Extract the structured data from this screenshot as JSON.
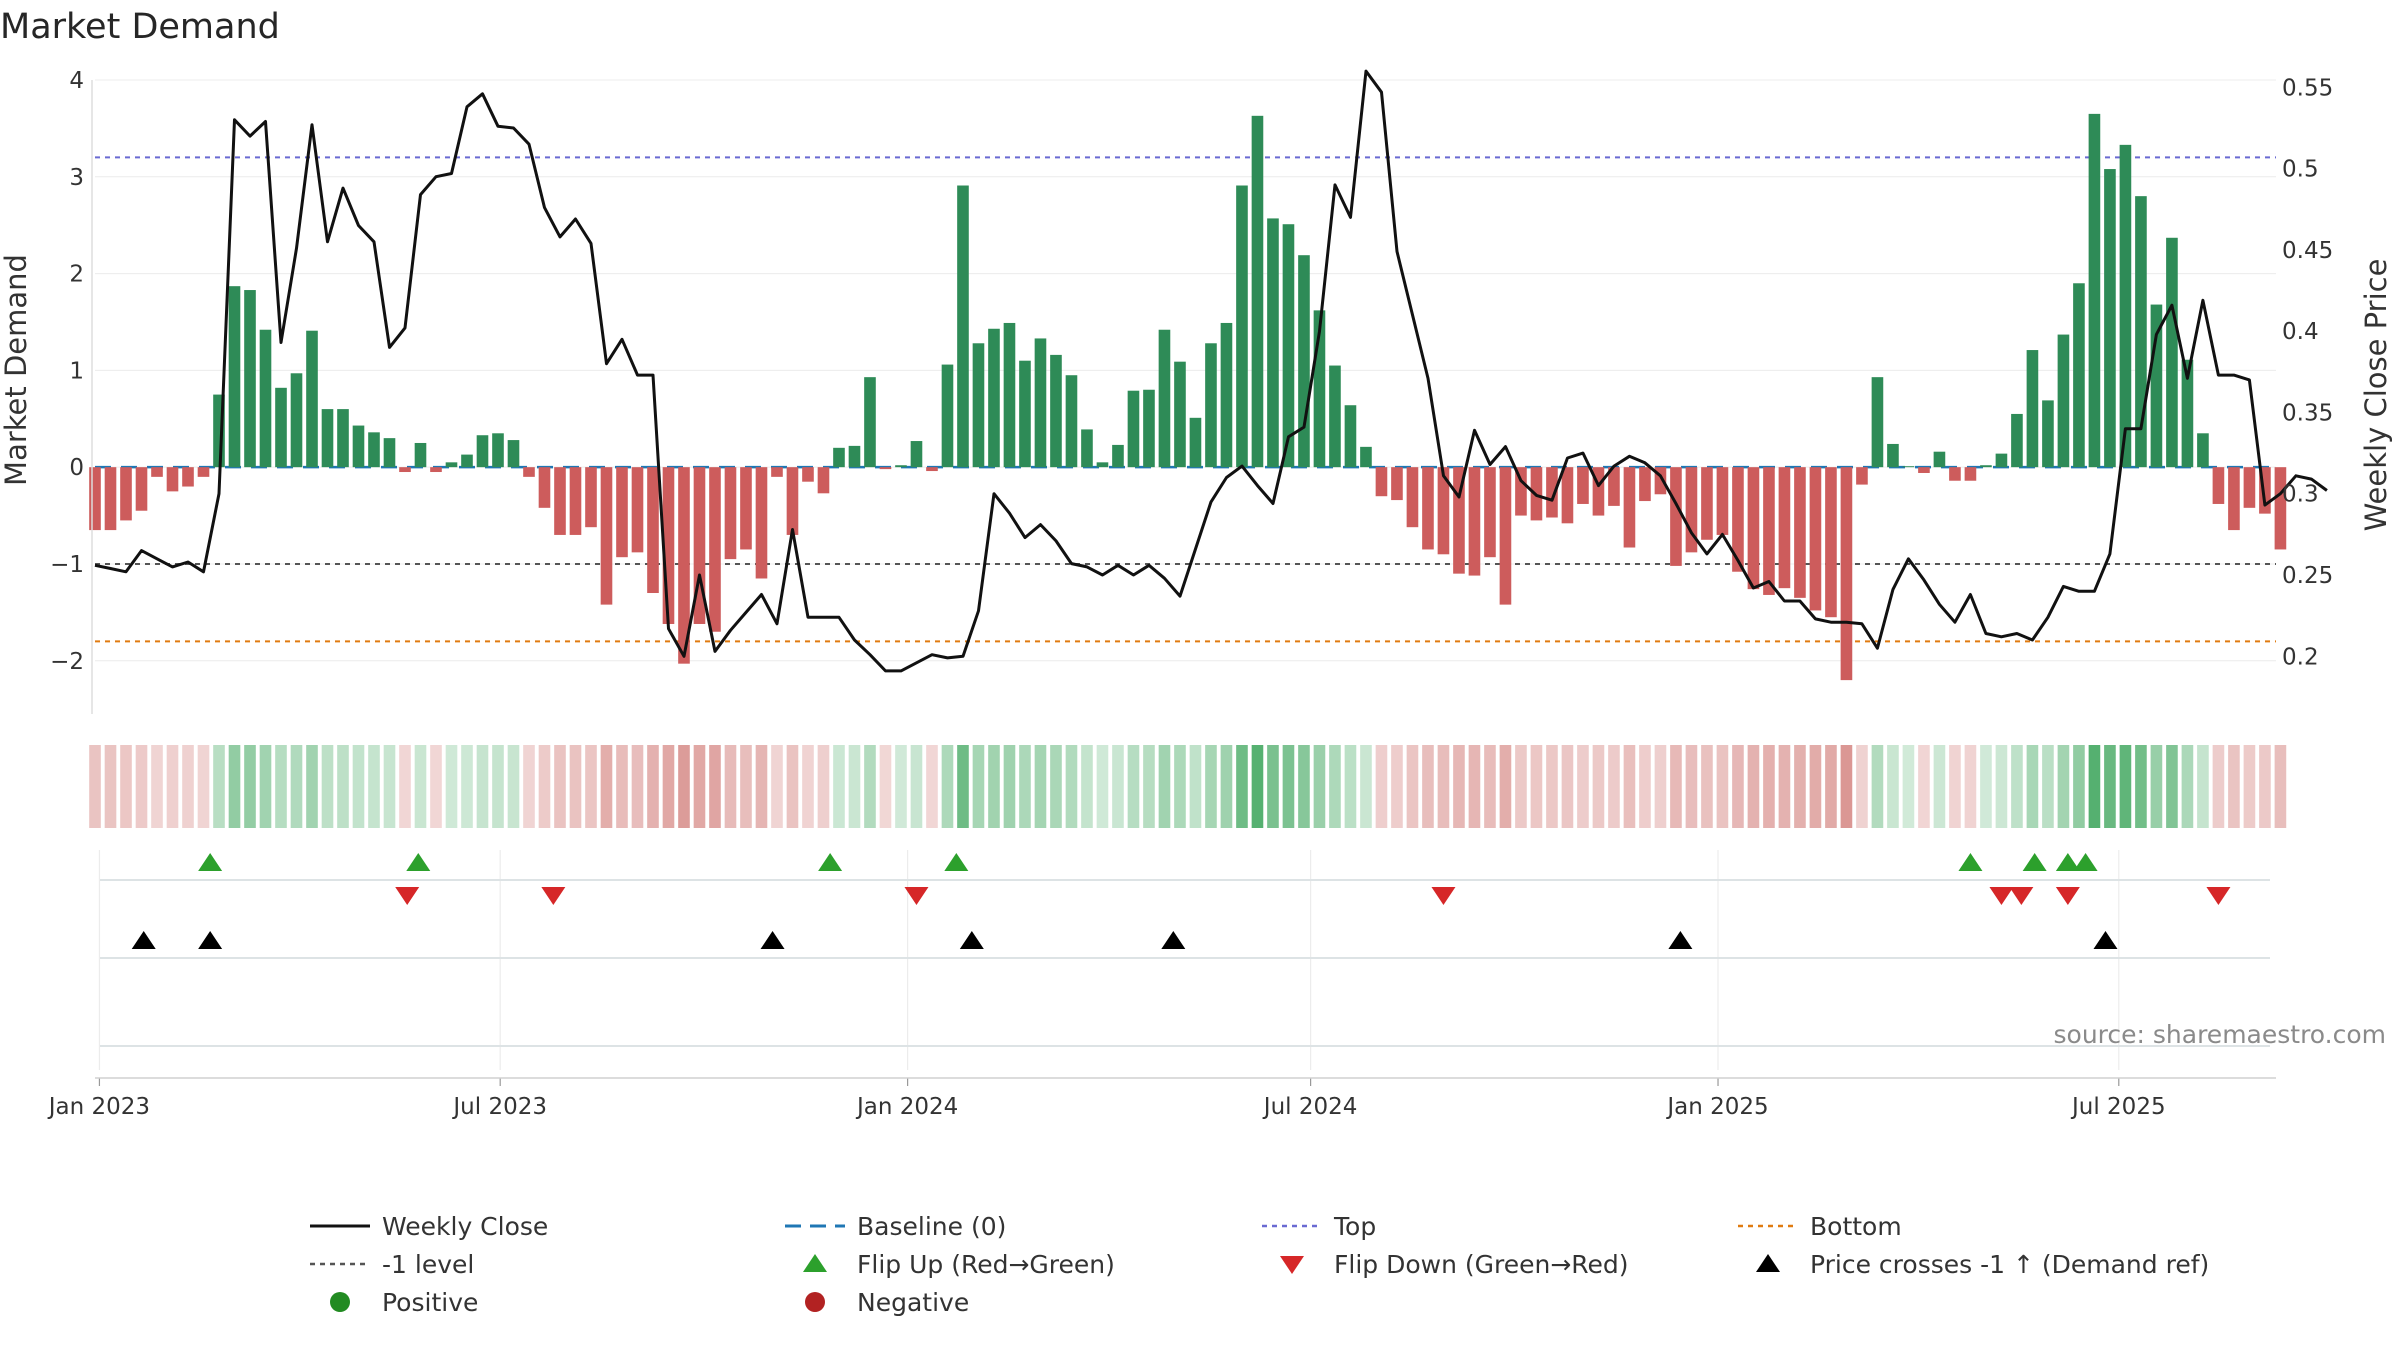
{
  "chart_data": {
    "type": "bar",
    "title": "Market Demand",
    "source": "source: sharemaestro.com",
    "ylabel": "Market Demand",
    "y2label": "Weekly Close Price",
    "ylim": [
      -2.55,
      4.0
    ],
    "y2lim": [
      0.1645,
      0.5545
    ],
    "yticks": [
      "4",
      "3",
      "2",
      "1",
      "0",
      "−1",
      "−2"
    ],
    "y2ticks": [
      "0.55",
      "0.5",
      "0.45",
      "0.4",
      "0.35",
      "0.3",
      "0.25",
      "0.2"
    ],
    "x_start": "2022-12-30",
    "x_end": "2025-09-10",
    "x_ticks": [
      {
        "date": "2023-01-01",
        "label": "Jan 2023"
      },
      {
        "date": "2023-07-01",
        "label": "Jul 2023"
      },
      {
        "date": "2024-01-01",
        "label": "Jan 2024"
      },
      {
        "date": "2024-07-01",
        "label": "Jul 2024"
      },
      {
        "date": "2025-01-01",
        "label": "Jan 2025"
      },
      {
        "date": "2025-07-01",
        "label": "Jul 2025"
      }
    ],
    "reference_lines": {
      "top": 3.2,
      "minus_one": -1.0,
      "bottom": -1.8,
      "baseline": 0
    },
    "first_week": "2022-12-30",
    "demand_weekly": [
      -0.65,
      -0.65,
      -0.55,
      -0.45,
      -0.1,
      -0.25,
      -0.2,
      -0.1,
      0.75,
      1.87,
      1.83,
      1.42,
      0.82,
      0.97,
      1.41,
      0.6,
      0.6,
      0.43,
      0.36,
      0.3,
      -0.05,
      0.25,
      -0.05,
      0.05,
      0.13,
      0.33,
      0.35,
      0.28,
      -0.1,
      -0.42,
      -0.7,
      -0.7,
      -0.62,
      -1.42,
      -0.93,
      -0.88,
      -1.3,
      -1.62,
      -2.03,
      -1.62,
      -1.7,
      -0.95,
      -0.85,
      -1.15,
      -0.1,
      -0.7,
      -0.15,
      -0.27,
      0.2,
      0.22,
      0.93,
      -0.02,
      0.02,
      0.27,
      -0.04,
      1.06,
      2.91,
      1.28,
      1.43,
      1.49,
      1.1,
      1.33,
      1.16,
      0.95,
      0.39,
      0.05,
      0.23,
      0.79,
      0.8,
      1.42,
      1.09,
      0.51,
      1.28,
      1.49,
      2.91,
      3.63,
      2.57,
      2.51,
      2.19,
      1.62,
      1.05,
      0.64,
      0.21,
      -0.3,
      -0.34,
      -0.62,
      -0.85,
      -0.9,
      -1.1,
      -1.12,
      -0.93,
      -1.42,
      -0.5,
      -0.55,
      -0.52,
      -0.58,
      -0.38,
      -0.5,
      -0.4,
      -0.83,
      -0.35,
      -0.28,
      -1.02,
      -0.88,
      -0.75,
      -0.7,
      -1.08,
      -1.26,
      -1.32,
      -1.25,
      -1.35,
      -1.48,
      -1.55,
      -2.2,
      -0.18,
      0.93,
      0.24,
      0.01,
      -0.06,
      0.16,
      -0.14,
      -0.14,
      0.02,
      0.14,
      0.55,
      1.21,
      0.69,
      1.37,
      1.9,
      3.65,
      3.08,
      3.33,
      2.8,
      1.68,
      2.37,
      1.11,
      0.35,
      -0.38,
      -0.65,
      -0.42,
      -0.48,
      -0.85
    ],
    "close_weekly": [
      0.256,
      0.254,
      0.252,
      0.265,
      0.26,
      0.255,
      0.258,
      0.252,
      0.3,
      0.53,
      0.52,
      0.529,
      0.393,
      0.451,
      0.527,
      0.455,
      0.488,
      0.465,
      0.455,
      0.39,
      0.402,
      0.484,
      0.495,
      0.497,
      0.538,
      0.546,
      0.526,
      0.525,
      0.515,
      0.476,
      0.458,
      0.469,
      0.454,
      0.38,
      0.395,
      0.373,
      0.373,
      0.217,
      0.2,
      0.25,
      0.203,
      0.216,
      0.227,
      0.238,
      0.22,
      0.278,
      0.224,
      0.224,
      0.224,
      0.21,
      0.201,
      0.191,
      0.191,
      0.196,
      0.201,
      0.199,
      0.2,
      0.228,
      0.3,
      0.288,
      0.273,
      0.281,
      0.271,
      0.257,
      0.255,
      0.25,
      0.256,
      0.25,
      0.256,
      0.248,
      0.237,
      0.266,
      0.295,
      0.31,
      0.317,
      0.305,
      0.294,
      0.335,
      0.341,
      0.4,
      0.49,
      0.47,
      0.56,
      0.547,
      0.449,
      0.41,
      0.371,
      0.311,
      0.298,
      0.339,
      0.318,
      0.329,
      0.308,
      0.299,
      0.296,
      0.322,
      0.325,
      0.305,
      0.317,
      0.323,
      0.319,
      0.311,
      0.294,
      0.276,
      0.263,
      0.275,
      0.259,
      0.242,
      0.246,
      0.234,
      0.234,
      0.223,
      0.221,
      0.221,
      0.22,
      0.205,
      0.241,
      0.26,
      0.247,
      0.232,
      0.221,
      0.238,
      0.214,
      0.212,
      0.214,
      0.21,
      0.224,
      0.243,
      0.24,
      0.24,
      0.263,
      0.34,
      0.34,
      0.398,
      0.416,
      0.371,
      0.419,
      0.373,
      0.373,
      0.37,
      0.293,
      0.3,
      0.311,
      0.309,
      0.302
    ],
    "flip_up": [
      "2023-02-20",
      "2023-05-25",
      "2023-11-27",
      "2024-01-23",
      "2025-04-25",
      "2025-05-24",
      "2025-06-08",
      "2025-06-16"
    ],
    "flip_down": [
      "2023-05-20",
      "2023-07-25",
      "2024-01-05",
      "2024-08-30",
      "2025-05-09",
      "2025-05-18",
      "2025-06-08",
      "2025-08-15"
    ],
    "price_crosses": [
      "2023-01-21",
      "2023-02-20",
      "2023-11-01",
      "2024-01-30",
      "2024-04-30",
      "2024-12-15",
      "2025-06-25"
    ],
    "legend": [
      {
        "label": "Weekly Close",
        "color": "#111111",
        "symbol": "line"
      },
      {
        "label": "Baseline (0)",
        "color": "#1f77b4",
        "symbol": "dash"
      },
      {
        "label": "Top",
        "color": "#6a6ad2",
        "symbol": "dot"
      },
      {
        "label": "Bottom",
        "color": "#e07b10",
        "symbol": "dot"
      },
      {
        "label": "-1 level",
        "color": "#555555",
        "symbol": "dot"
      },
      {
        "label": "Flip Up (Red→Green)",
        "color": "#2ca02c",
        "symbol": "triangle-up"
      },
      {
        "label": "Flip Down (Green→Red)",
        "color": "#d62728",
        "symbol": "triangle-down"
      },
      {
        "label": "Price crosses -1 ↑ (Demand ref)",
        "color": "#000000",
        "symbol": "triangle-up"
      },
      {
        "label": "Positive",
        "color": "#228b22",
        "symbol": "circle"
      },
      {
        "label": "Negative",
        "color": "#b22222",
        "symbol": "circle"
      }
    ],
    "colors": {
      "positive_bar": "#2e8b57",
      "negative_bar": "#cd5c5c",
      "close_line": "#111111",
      "baseline": "#1f77b4",
      "top": "#6a6ad2",
      "minus_one": "#555555",
      "bottom": "#e07b10"
    }
  }
}
